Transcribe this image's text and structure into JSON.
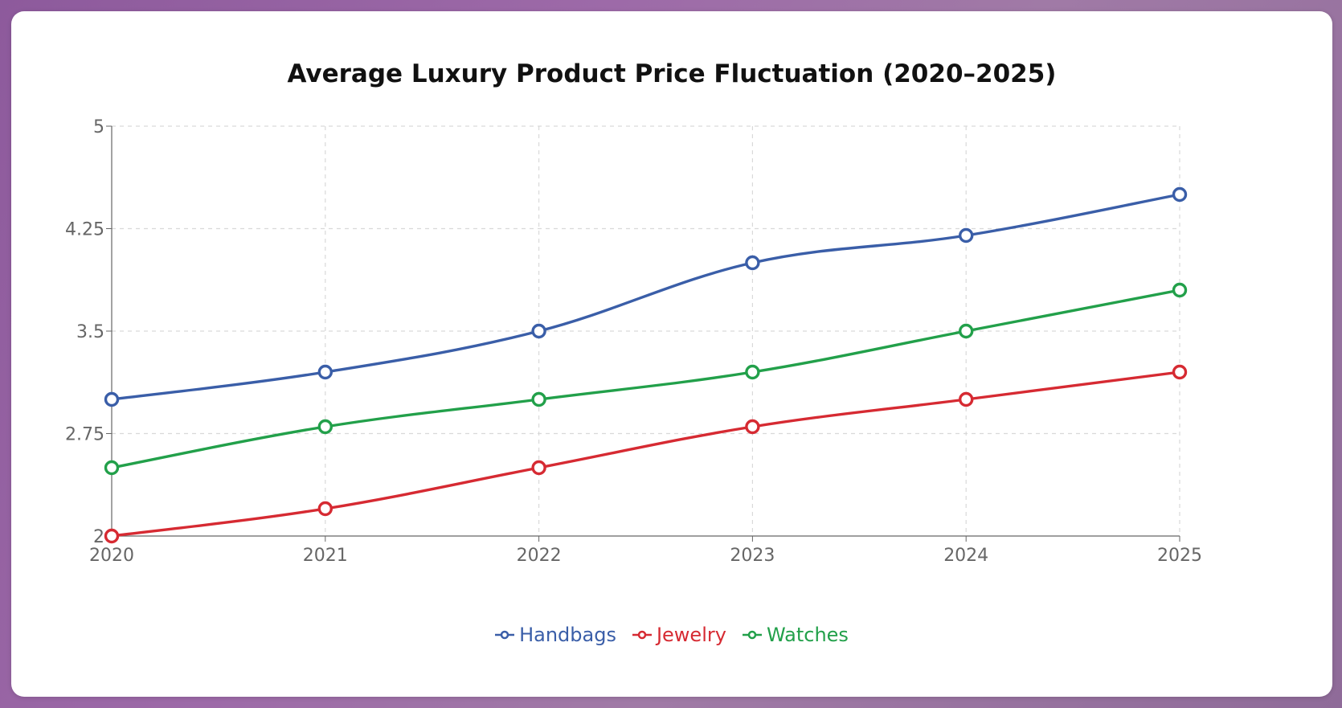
{
  "chart_data": {
    "type": "line",
    "title": "Average Luxury Product Price Fluctuation (2020–2025)",
    "xlabel": "",
    "ylabel": "",
    "categories": [
      "2020",
      "2021",
      "2022",
      "2023",
      "2024",
      "2025"
    ],
    "yticks": [
      "2",
      "2.75",
      "3.5",
      "4.25",
      "5"
    ],
    "ylim": [
      2,
      5
    ],
    "grid": true,
    "legend_position": "bottom",
    "series": [
      {
        "name": "Handbags",
        "color": "#3a5ea8",
        "values": [
          3.0,
          3.2,
          3.5,
          4.0,
          4.2,
          4.5
        ]
      },
      {
        "name": "Jewelry",
        "color": "#d62a32",
        "values": [
          2.0,
          2.2,
          2.5,
          2.8,
          3.0,
          3.2
        ]
      },
      {
        "name": "Watches",
        "color": "#22a04a",
        "values": [
          2.5,
          2.8,
          3.0,
          3.2,
          3.5,
          3.8
        ]
      }
    ]
  }
}
